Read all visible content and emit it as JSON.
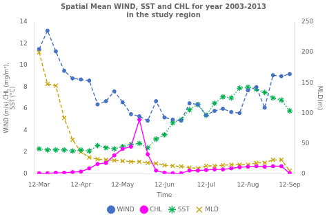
{
  "chart_data": {
    "type": "line",
    "title": "Spatial Mean WIND, SST and CHL for year 2003-2013\nin the study region",
    "xlabel": "Time",
    "ylabel": "WIND (m/s),CHL (mg/m³),\nSST (°C)",
    "y2label": "MLD(m)",
    "x": [
      0,
      1,
      2,
      3,
      4,
      5,
      6,
      7,
      8,
      9,
      10,
      11,
      12,
      13,
      14,
      15,
      16,
      17,
      18,
      19,
      20,
      21,
      22,
      23,
      24,
      25,
      26,
      27,
      28,
      29,
      30
    ],
    "xlim": [
      -0.5,
      30.5
    ],
    "xticks": [
      {
        "value": 0,
        "label": "12-Mar"
      },
      {
        "value": 5,
        "label": "12-Apr"
      },
      {
        "value": 10,
        "label": "12-May"
      },
      {
        "value": 15,
        "label": "12-Jun"
      },
      {
        "value": 20,
        "label": "12-Jul"
      },
      {
        "value": 25,
        "label": "12-Aug"
      },
      {
        "value": 30,
        "label": "12-Sep"
      }
    ],
    "ylim": [
      0,
      14
    ],
    "yticks": [
      0,
      2,
      4,
      6,
      8,
      10,
      12,
      14
    ],
    "y2lim": [
      0,
      250
    ],
    "y2ticks": [
      0,
      50,
      100,
      150,
      200,
      250
    ],
    "grid": false,
    "legend": "bottom",
    "series": [
      {
        "name": "WIND",
        "color": "#4472C4",
        "marker": "circle",
        "line_style": "dashed",
        "values": [
          11.5,
          13.2,
          11.3,
          9.5,
          8.8,
          8.7,
          8.6,
          6.4,
          6.7,
          7.6,
          6.6,
          5.5,
          5.3,
          4.9,
          6.7,
          5.2,
          5.0,
          4.9,
          6.5,
          6.4,
          5.4,
          5.8,
          6.0,
          5.7,
          5.6,
          7.7,
          8.0,
          6.1,
          9.1,
          9.0,
          9.2
        ]
      },
      {
        "name": "CHL",
        "color": "#FF00FF",
        "marker": "circle",
        "line_style": "solid",
        "values": [
          0.05,
          0.05,
          0.1,
          0.1,
          0.15,
          0.2,
          0.5,
          0.9,
          1.0,
          1.7,
          2.3,
          2.5,
          5.0,
          1.8,
          0.3,
          0.1,
          0.05,
          0.05,
          0.3,
          0.3,
          0.35,
          0.4,
          0.4,
          0.5,
          0.6,
          0.65,
          0.7,
          0.65,
          0.7,
          0.7,
          0.05
        ]
      },
      {
        "name": "SST",
        "color": "#00B050",
        "marker": "star",
        "line_style": "dotted",
        "values": [
          2.3,
          2.2,
          2.2,
          2.2,
          2.1,
          2.2,
          2.1,
          2.6,
          2.4,
          2.3,
          2.5,
          2.7,
          2.8,
          2.4,
          3.2,
          3.6,
          4.7,
          5.0,
          5.9,
          6.4,
          5.4,
          6.5,
          7.1,
          7.0,
          7.9,
          8.0,
          7.8,
          7.5,
          7.0,
          6.8,
          5.8
        ]
      },
      {
        "name": "MLD",
        "color": "#C8A000",
        "marker": "x",
        "line_style": "dashed",
        "axis": "y2",
        "values": [
          200,
          148,
          145,
          92,
          56,
          36,
          27,
          24,
          23,
          22,
          21,
          20,
          20,
          18,
          17,
          14,
          13,
          12,
          10,
          9,
          13,
          13,
          14,
          15,
          15,
          15,
          18,
          18,
          23,
          23,
          5
        ]
      }
    ]
  }
}
